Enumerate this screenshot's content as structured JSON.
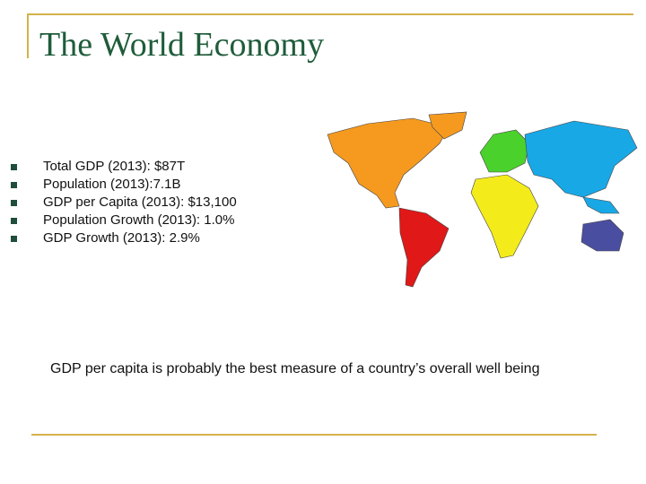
{
  "header": {
    "title": "The World Economy"
  },
  "bullets": [
    "Total GDP (2013): $87T",
    "Population (2013):7.1B",
    "GDP per Capita (2013): $13,100",
    "Population Growth (2013): 1.0%",
    "GDP Growth (2013): 2.9%"
  ],
  "note": "GDP per capita is probably the best measure of a country’s overall well being"
}
